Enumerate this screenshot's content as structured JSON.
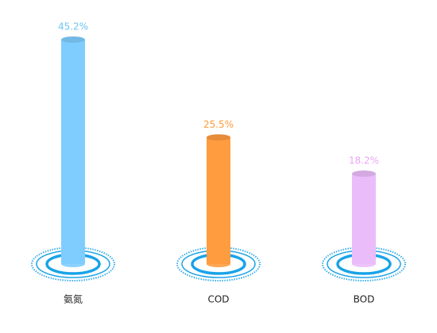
{
  "chart_data": {
    "type": "bar",
    "categories": [
      "氨氮",
      "COD",
      "BOD"
    ],
    "values": [
      45.2,
      25.5,
      18.2
    ],
    "value_labels": [
      "45.2%",
      "25.5%",
      "18.2%"
    ],
    "colors": [
      "#7fcdff",
      "#ff9c40",
      "#ebbcfa"
    ],
    "label_colors": [
      "#6cc4f4",
      "#ff9a3c",
      "#e9a6f4"
    ]
  }
}
